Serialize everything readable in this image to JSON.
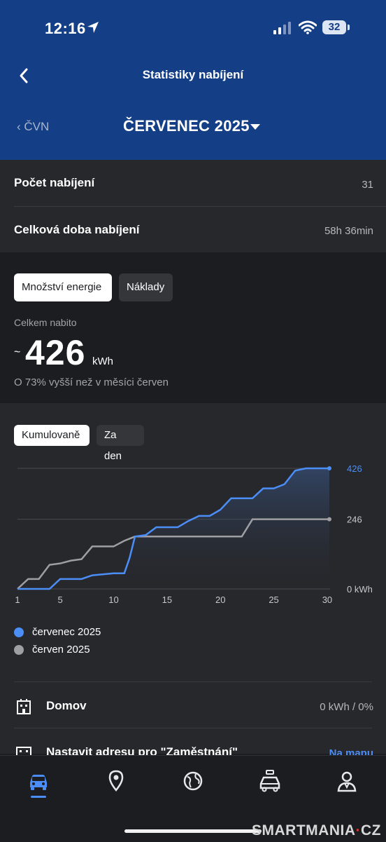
{
  "status_bar": {
    "time": "12:16",
    "battery": "32"
  },
  "header": {
    "title": "Statistiky nabíjení",
    "prev_label": "ČVN",
    "month_label": "ČERVENEC 2025"
  },
  "summary": {
    "count_label": "Počet nabíjení",
    "count_value": "31",
    "duration_label": "Celková doba nabíjení",
    "duration_value": "58h 36min"
  },
  "energy": {
    "tabs": [
      "Množství energie",
      "Náklady"
    ],
    "total_label": "Celkem nabito",
    "approx": "~",
    "total_value": "426",
    "unit": "kWh",
    "comparison": "O 73% vyšší než v měsíci červen"
  },
  "chart_toggle": [
    "Kumulovaně",
    "Za den"
  ],
  "chart_data": {
    "type": "line",
    "x_ticks": [
      "1",
      "5",
      "10",
      "15",
      "20",
      "25",
      "30"
    ],
    "y_labels": [
      "426",
      "246",
      "0 kWh"
    ],
    "series": [
      {
        "name": "červenec 2025",
        "color": "#4c8ef7",
        "x": [
          1,
          4,
          5,
          7,
          8,
          10,
          11,
          11.5,
          12,
          13,
          14,
          16,
          17,
          18,
          19,
          20,
          21,
          23,
          24,
          25,
          26,
          27,
          28,
          29,
          30.2
        ],
        "y": [
          0,
          0,
          35,
          35,
          48,
          55,
          55,
          110,
          185,
          190,
          218,
          218,
          240,
          258,
          258,
          280,
          320,
          320,
          355,
          355,
          370,
          418,
          426,
          426,
          426
        ]
      },
      {
        "name": "červen 2025",
        "color": "#9e9ea3",
        "x": [
          1,
          2,
          3,
          4,
          5,
          6,
          7,
          8,
          9,
          10,
          11,
          12,
          13,
          14,
          15,
          16,
          17,
          18,
          19,
          20,
          21,
          22,
          23,
          24,
          25,
          26,
          27,
          28,
          29,
          30.2
        ],
        "y": [
          0,
          35,
          35,
          85,
          90,
          100,
          105,
          150,
          150,
          150,
          170,
          185,
          185,
          185,
          185,
          185,
          185,
          185,
          185,
          185,
          185,
          185,
          246,
          246,
          246,
          246,
          246,
          246,
          246,
          246
        ]
      }
    ],
    "xlim": [
      1,
      30.2
    ],
    "ylim": [
      0,
      426
    ],
    "legend": [
      "červenec 2025",
      "červen 2025"
    ]
  },
  "locations": {
    "home_label": "Domov",
    "home_value": "0 kWh / 0%",
    "work_label": "Nastavit adresu pro \"Zaměstnání\"",
    "work_link": "Na mapu"
  },
  "tabbar": {
    "icons": [
      "car-icon",
      "location-pin-icon",
      "globe-icon",
      "car-service-icon",
      "person-icon"
    ],
    "active_color": "#4c8ef7"
  },
  "watermark": {
    "text": "SMARTMANIA",
    "dot": "·",
    "suffix": "CZ"
  }
}
